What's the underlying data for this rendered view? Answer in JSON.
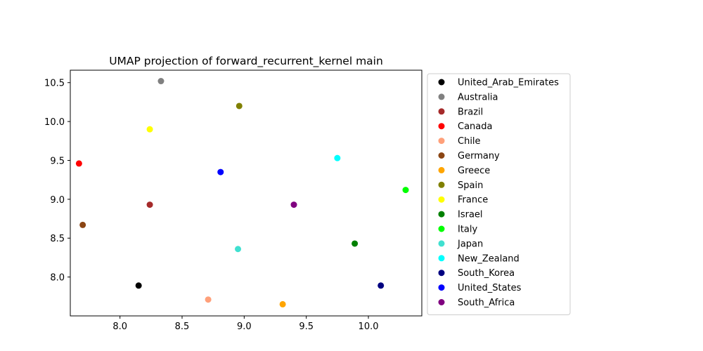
{
  "chart_data": {
    "type": "scatter",
    "title": "UMAP projection of forward_recurrent_kernel main",
    "xlabel": "",
    "ylabel": "",
    "xlim": [
      7.6,
      10.43
    ],
    "ylim": [
      7.5,
      10.66
    ],
    "xticks": [
      "8.0",
      "8.5",
      "9.0",
      "9.5",
      "10.0"
    ],
    "yticks": [
      "8.0",
      "8.5",
      "9.0",
      "9.5",
      "10.0",
      "10.5"
    ],
    "grid": false,
    "legend_position": "outside-right",
    "series": [
      {
        "name": "United_Arab_Emirates",
        "color": "#000000",
        "x": 8.15,
        "y": 7.89
      },
      {
        "name": "Australia",
        "color": "#808080",
        "x": 8.33,
        "y": 10.52
      },
      {
        "name": "Brazil",
        "color": "#a52a2a",
        "x": 8.24,
        "y": 8.93
      },
      {
        "name": "Canada",
        "color": "#ff0000",
        "x": 7.67,
        "y": 9.46
      },
      {
        "name": "Chile",
        "color": "#ffa07a",
        "x": 8.71,
        "y": 7.71
      },
      {
        "name": "Germany",
        "color": "#8b4513",
        "x": 7.7,
        "y": 8.67
      },
      {
        "name": "Greece",
        "color": "#ffa500",
        "x": 9.31,
        "y": 7.65
      },
      {
        "name": "Spain",
        "color": "#808000",
        "x": 8.96,
        "y": 10.2
      },
      {
        "name": "France",
        "color": "#ffff00",
        "x": 8.24,
        "y": 9.9
      },
      {
        "name": "Israel",
        "color": "#008000",
        "x": 9.89,
        "y": 8.43
      },
      {
        "name": "Italy",
        "color": "#00ff00",
        "x": 10.3,
        "y": 9.12
      },
      {
        "name": "Japan",
        "color": "#40e0d0",
        "x": 8.95,
        "y": 8.36
      },
      {
        "name": "New_Zealand",
        "color": "#00ffff",
        "x": 9.75,
        "y": 9.53
      },
      {
        "name": "South_Korea",
        "color": "#000080",
        "x": 10.1,
        "y": 7.89
      },
      {
        "name": "United_States",
        "color": "#0000ff",
        "x": 8.81,
        "y": 9.35
      },
      {
        "name": "South_Africa",
        "color": "#800080",
        "x": 9.4,
        "y": 8.93
      }
    ]
  }
}
